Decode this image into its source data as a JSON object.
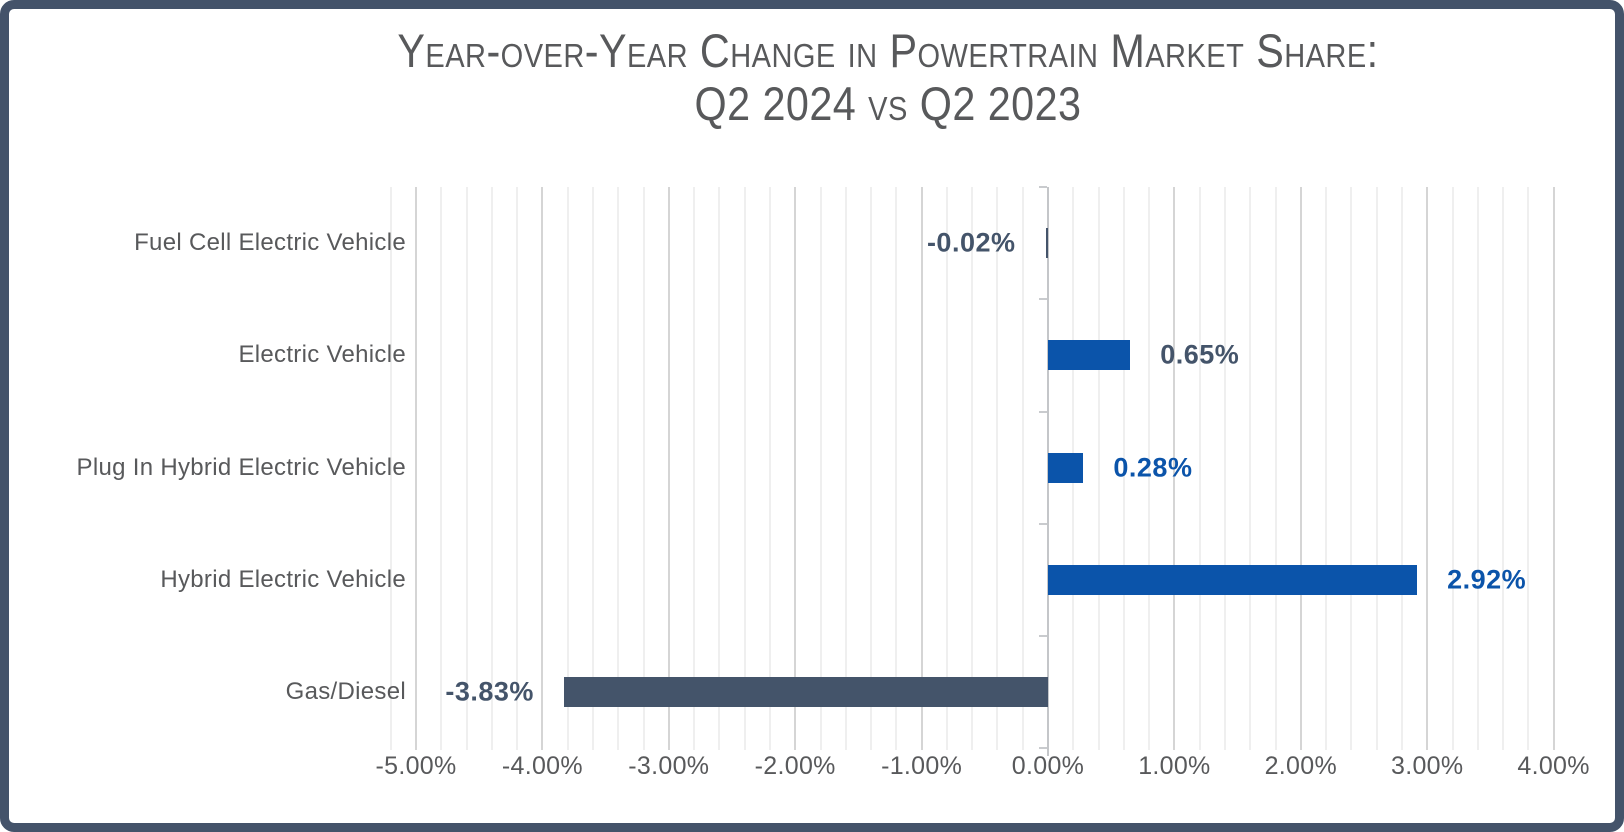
{
  "title": {
    "line1": "Year-over-Year Change in Powertrain Market Share:",
    "line2": "Q2 2024 vs Q2 2023"
  },
  "chart_data": {
    "type": "bar",
    "orientation": "horizontal",
    "title": "Year-over-Year Change in Powertrain Market Share: Q2 2024 vs Q2 2023",
    "categories": [
      "Fuel Cell Electric Vehicle",
      "Electric Vehicle",
      "Plug In Hybrid Electric Vehicle",
      "Hybrid Electric Vehicle",
      "Gas/Diesel"
    ],
    "values": [
      -0.02,
      0.65,
      0.28,
      2.92,
      -3.83
    ],
    "data_labels": [
      "-0.02%",
      "0.65%",
      "0.28%",
      "2.92%",
      "-3.83%"
    ],
    "bar_colors": [
      "#44546A",
      "#0B54AA",
      "#0B54AA",
      "#0B54AA",
      "#44546A"
    ],
    "data_label_colors": [
      "#44546A",
      "#44546A",
      "#0B54AA",
      "#0B54AA",
      "#44546A"
    ],
    "xlabel": "",
    "ylabel": "",
    "x_axis": {
      "min": -5.0,
      "max": 4.0,
      "major_step": 1.0,
      "minor_step": 0.2,
      "tick_values": [
        -5,
        -4,
        -3,
        -2,
        -1,
        0,
        1,
        2,
        3,
        4
      ],
      "tick_labels": [
        "-5.00%",
        "-4.00%",
        "-3.00%",
        "-2.00%",
        "-1.00%",
        "0.00%",
        "1.00%",
        "2.00%",
        "3.00%",
        "4.00%"
      ]
    },
    "grid": true,
    "legend": false,
    "colors": {
      "positive_bar": "#0B54AA",
      "negative_bar": "#44546A",
      "frame_border": "#44536A",
      "text_gray": "#58595B",
      "gridline_minor": "#EFEFEF",
      "gridline_major": "#D5D5D5",
      "axis_line": "#C4C6C9"
    }
  }
}
